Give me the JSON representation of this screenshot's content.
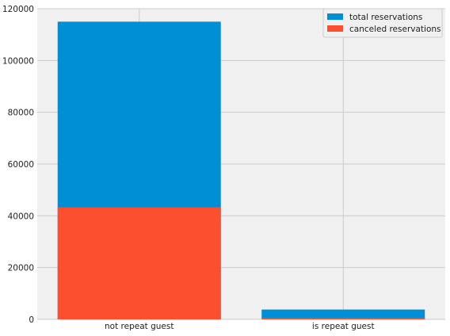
{
  "chart_data": {
    "type": "bar",
    "stacking": "overlay",
    "categories": [
      "not repeat guest",
      "is repeat guest"
    ],
    "series": [
      {
        "name": "total reservations",
        "values": [
          115000,
          3800
        ],
        "color": "#008fd5"
      },
      {
        "name": "canceled reservations",
        "values": [
          43300,
          550
        ],
        "color": "#fc4f30"
      }
    ],
    "title": "",
    "xlabel": "",
    "ylabel": "",
    "ylim": [
      0,
      120000
    ],
    "yticks": [
      0,
      20000,
      40000,
      60000,
      80000,
      100000,
      120000
    ],
    "grid": true,
    "legend_position": "top-right",
    "background_color": "#f0f0f0",
    "grid_color": "#cbcbcb"
  }
}
